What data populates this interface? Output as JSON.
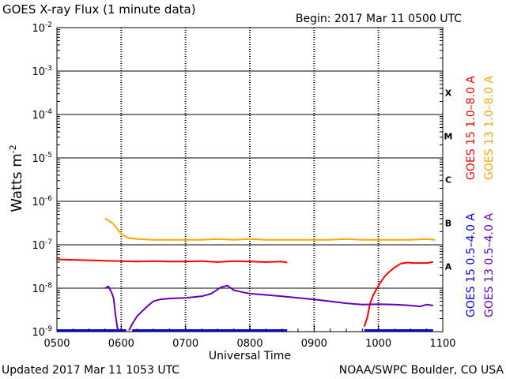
{
  "chart_data": {
    "type": "line",
    "title": "GOES X-ray Flux (1 minute data)",
    "begin": "Begin: 2017 Mar 11 0500 UTC",
    "xlabel": "Universal Time",
    "ylabel": "Watts m",
    "ylabel_exp": "-2",
    "footer_left": "Updated 2017 Mar 11 1053 UTC",
    "footer_right": "NOAA/SWPC Boulder, CO USA",
    "x_ticks": [
      "0500",
      "0600",
      "0700",
      "0800",
      "0900",
      "1000",
      "1100"
    ],
    "x_range_hours": [
      5,
      11
    ],
    "y_scale": "log",
    "y_range": [
      1e-09,
      0.01
    ],
    "y_ticks": [
      {
        "base": "10",
        "exp": "-2"
      },
      {
        "base": "10",
        "exp": "-3"
      },
      {
        "base": "10",
        "exp": "-4"
      },
      {
        "base": "10",
        "exp": "-5"
      },
      {
        "base": "10",
        "exp": "-6"
      },
      {
        "base": "10",
        "exp": "-7"
      },
      {
        "base": "10",
        "exp": "-8"
      },
      {
        "base": "10",
        "exp": "-9"
      }
    ],
    "flare_classes": [
      {
        "label": "X",
        "level": 0.0001
      },
      {
        "label": "M",
        "level": 1e-05
      },
      {
        "label": "C",
        "level": 1e-06
      },
      {
        "label": "B",
        "level": 1e-07
      },
      {
        "label": "A",
        "level": 1e-08
      }
    ],
    "grid": true,
    "legend_placement": "right",
    "series": [
      {
        "name": "GOES 15 1.0–8.0 A",
        "color": "#ff0000",
        "segments": [
          [
            [
              5.0,
              4.6e-08
            ],
            [
              5.25,
              4.5e-08
            ],
            [
              5.5,
              4.4e-08
            ],
            [
              5.75,
              4.3e-08
            ],
            [
              6.0,
              4.2e-08
            ],
            [
              6.25,
              4.1e-08
            ],
            [
              6.5,
              4.2e-08
            ],
            [
              6.75,
              4.1e-08
            ],
            [
              7.0,
              4.1e-08
            ],
            [
              7.25,
              4.2e-08
            ],
            [
              7.5,
              4e-08
            ],
            [
              7.75,
              4.2e-08
            ],
            [
              8.0,
              4.1e-08
            ],
            [
              8.25,
              4e-08
            ],
            [
              8.5,
              4.1e-08
            ],
            [
              8.58,
              3.9e-08
            ]
          ],
          [
            [
              9.78,
              1.3e-09
            ],
            [
              9.83,
              2.2e-09
            ],
            [
              9.87,
              4.5e-09
            ],
            [
              9.92,
              7e-09
            ],
            [
              9.97,
              9.5e-09
            ],
            [
              10.03,
              1.35e-08
            ],
            [
              10.1,
              1.9e-08
            ],
            [
              10.17,
              2.4e-08
            ],
            [
              10.25,
              3e-08
            ],
            [
              10.35,
              3.7e-08
            ],
            [
              10.45,
              3.9e-08
            ],
            [
              10.55,
              3.8e-08
            ],
            [
              10.65,
              3.8e-08
            ],
            [
              10.75,
              3.8e-08
            ],
            [
              10.85,
              4e-08
            ]
          ]
        ]
      },
      {
        "name": "GOES 13 1.0–8.0 A",
        "color": "#ffa500",
        "segments": [
          [
            [
              5.75,
              4e-07
            ],
            [
              5.82,
              3.5e-07
            ],
            [
              5.88,
              3e-07
            ],
            [
              5.95,
              2.2e-07
            ],
            [
              6.0,
              1.8e-07
            ],
            [
              6.05,
              1.6e-07
            ],
            [
              6.1,
              1.45e-07
            ],
            [
              6.25,
              1.35e-07
            ],
            [
              6.5,
              1.3e-07
            ],
            [
              6.75,
              1.3e-07
            ],
            [
              7.0,
              1.3e-07
            ],
            [
              7.25,
              1.3e-07
            ],
            [
              7.5,
              1.35e-07
            ],
            [
              7.75,
              1.3e-07
            ],
            [
              8.0,
              1.35e-07
            ],
            [
              8.25,
              1.3e-07
            ],
            [
              8.5,
              1.3e-07
            ],
            [
              8.75,
              1.3e-07
            ],
            [
              9.0,
              1.3e-07
            ],
            [
              9.25,
              1.3e-07
            ],
            [
              9.5,
              1.35e-07
            ],
            [
              9.75,
              1.3e-07
            ],
            [
              10.0,
              1.3e-07
            ],
            [
              10.25,
              1.3e-07
            ],
            [
              10.5,
              1.3e-07
            ],
            [
              10.75,
              1.35e-07
            ],
            [
              10.88,
              1.3e-07
            ]
          ]
        ]
      },
      {
        "name": "GOES 15 0.5–4.0 A",
        "color": "#0000ff",
        "segments": [
          [
            [
              5.0,
              1e-09
            ],
            [
              6.08,
              1e-09
            ]
          ],
          [
            [
              6.17,
              1e-09
            ],
            [
              8.58,
              1e-09
            ]
          ],
          [
            [
              9.78,
              1e-09
            ],
            [
              10.85,
              1e-09
            ]
          ]
        ]
      },
      {
        "name": "GOES 13 0.5–4.0 A",
        "color": "#6600bb",
        "segments": [
          [
            [
              5.75,
              1e-08
            ],
            [
              5.8,
              1.1e-08
            ],
            [
              5.85,
              8e-09
            ],
            [
              5.88,
              6e-09
            ],
            [
              5.91,
              2.5e-09
            ],
            [
              5.94,
              1.2e-09
            ],
            [
              5.97,
              1e-09
            ]
          ],
          [
            [
              6.12,
              1e-09
            ],
            [
              6.17,
              1.5e-09
            ],
            [
              6.25,
              2.3e-09
            ],
            [
              6.33,
              3e-09
            ],
            [
              6.42,
              4e-09
            ],
            [
              6.5,
              5e-09
            ],
            [
              6.6,
              5.5e-09
            ],
            [
              6.75,
              5.8e-09
            ],
            [
              7.0,
              6e-09
            ],
            [
              7.25,
              6.5e-09
            ],
            [
              7.4,
              7.5e-09
            ],
            [
              7.55,
              1.05e-08
            ],
            [
              7.65,
              1.15e-08
            ],
            [
              7.75,
              9e-09
            ],
            [
              7.9,
              8e-09
            ],
            [
              8.0,
              7.5e-09
            ],
            [
              8.25,
              7e-09
            ],
            [
              8.5,
              6.5e-09
            ],
            [
              8.75,
              6e-09
            ],
            [
              9.0,
              5.5e-09
            ],
            [
              9.25,
              5e-09
            ],
            [
              9.5,
              4.5e-09
            ],
            [
              9.75,
              4.2e-09
            ],
            [
              10.0,
              4.3e-09
            ],
            [
              10.25,
              4.2e-09
            ],
            [
              10.5,
              4e-09
            ],
            [
              10.65,
              3.8e-09
            ],
            [
              10.75,
              4.2e-09
            ],
            [
              10.85,
              4e-09
            ]
          ]
        ]
      }
    ]
  }
}
